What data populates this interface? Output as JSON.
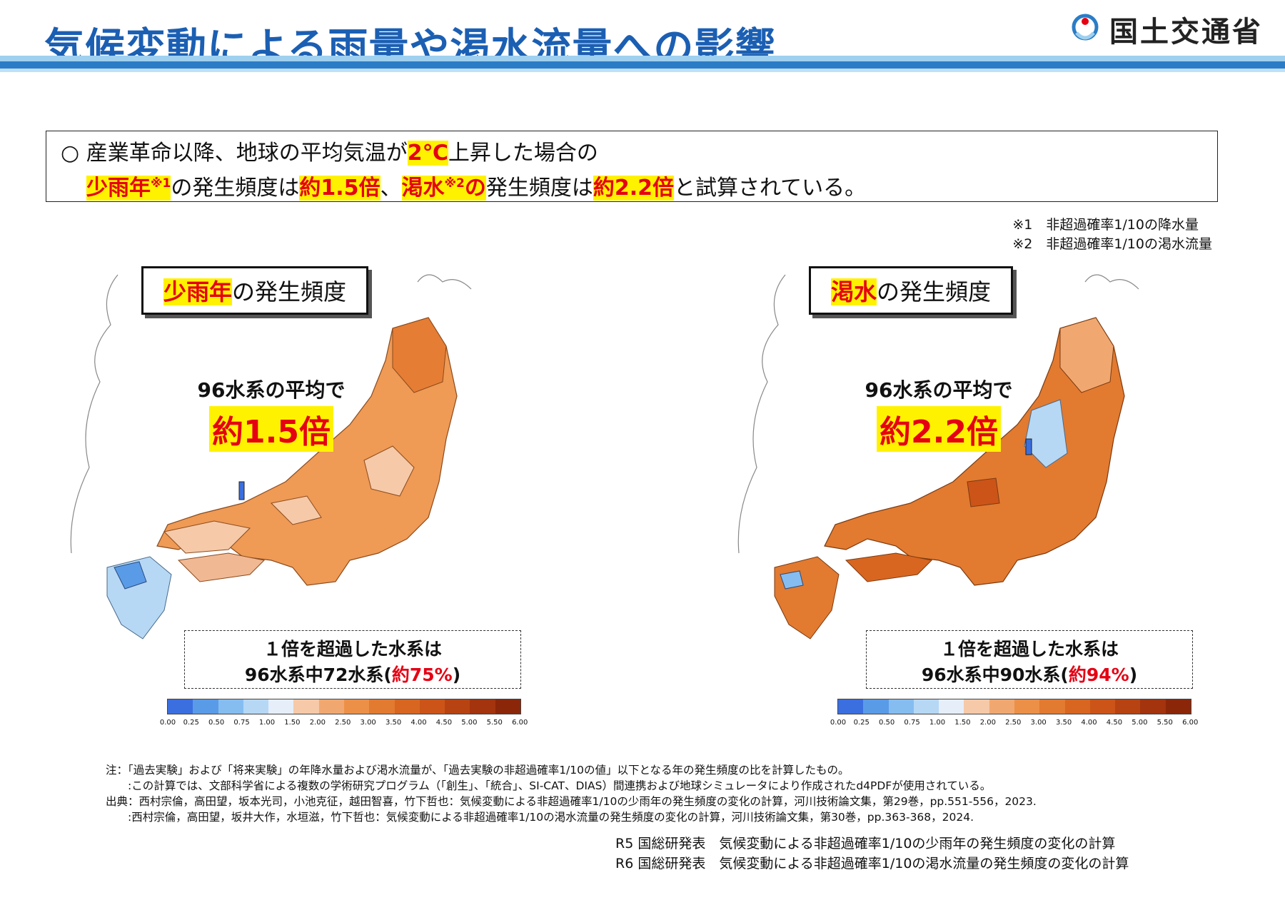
{
  "header": {
    "title": "気候変動による雨量や渇水流量への影響",
    "ministry": "国土交通省"
  },
  "summary": {
    "line1_prefix": "○ 産業革命以降、地球の平均気温が",
    "line1_highlight": "2℃",
    "line1_suffix": "上昇した場合の",
    "line2_a": "少雨年",
    "line2_a_note": "※1",
    "line2_b": "の発生頻度は",
    "line2_c": "約1.5倍",
    "line2_d": "、",
    "line2_e": "渇水",
    "line2_e_note": "※2",
    "line2_e2": "の",
    "line2_f": "発生頻度は",
    "line2_g": "約2.2倍",
    "line2_h": "と試算されている。"
  },
  "notes": {
    "n1": "※1　非超過確率1/10の降水量",
    "n2": "※2　非超過確率1/10の渇水流量"
  },
  "maps": [
    {
      "title_hl": "少雨年",
      "title_rest": "の発生頻度",
      "avg_label": "96水系の平均で",
      "avg_value": "約1.5倍",
      "exceed_line1": "１倍を超過した水系は",
      "exceed_line2_prefix": "96水系中72水系(",
      "exceed_pct": "約75%",
      "exceed_line2_suffix": ")"
    },
    {
      "title_hl": "渇水",
      "title_rest": "の発生頻度",
      "avg_label": "96水系の平均で",
      "avg_value": "約2.2倍",
      "exceed_line1": "１倍を超過した水系は",
      "exceed_line2_prefix": "96水系中90水系(",
      "exceed_pct": "約94%",
      "exceed_line2_suffix": ")"
    }
  ],
  "colorbar": {
    "ticks": [
      "0.00",
      "0.25",
      "0.50",
      "0.75",
      "1.00",
      "1.50",
      "2.00",
      "2.50",
      "3.00",
      "3.50",
      "4.00",
      "4.50",
      "5.00",
      "5.50",
      "6.00"
    ],
    "colors": [
      "#3b6fe0",
      "#5a9be8",
      "#86bdf0",
      "#b6d8f5",
      "#e6eefa",
      "#f6c9a8",
      "#f1a870",
      "#ec9048",
      "#e27a30",
      "#d86620",
      "#cc5418",
      "#b84312",
      "#a3340e",
      "#8c2609"
    ]
  },
  "colors": {
    "accent_blue": "#1b5fb3",
    "highlight_yellow": "#fff200",
    "highlight_red": "#e50012"
  },
  "footnotes": {
    "l1": "注：「過去実験」および「将来実験」の年降水量および渇水流量が、「過去実験の非超過確率1/10の値」以下となる年の発生頻度の比を計算したもの。",
    "l2": "　　:この計算では、文部科学省による複数の学術研究プログラム（「創生」、「統合」、SI-CAT、DIAS）間連携および地球シミュレータにより作成されたd4PDFが使用されている。",
    "l3": "出典：西村宗倫，高田望，坂本光司，小池克征，越田智喜，竹下哲也：気候変動による非超過確率1/10の少雨年の発生頻度の変化の計算，河川技術論文集，第29巻，pp.551-556，2023.",
    "l4": "　　:西村宗倫，高田望，坂井大作，水垣滋，竹下哲也：気候変動による非超過確率1/10の渇水流量の発生頻度の変化の計算，河川技術論文集，第30巻，pp.363-368，2024."
  },
  "publications": {
    "p1": "R5 国総研発表　気候変動による非超過確率1/10の少雨年の発生頻度の変化の計算",
    "p2": "R6 国総研発表　気候変動による非超過確率1/10の渇水流量の発生頻度の変化の計算"
  }
}
